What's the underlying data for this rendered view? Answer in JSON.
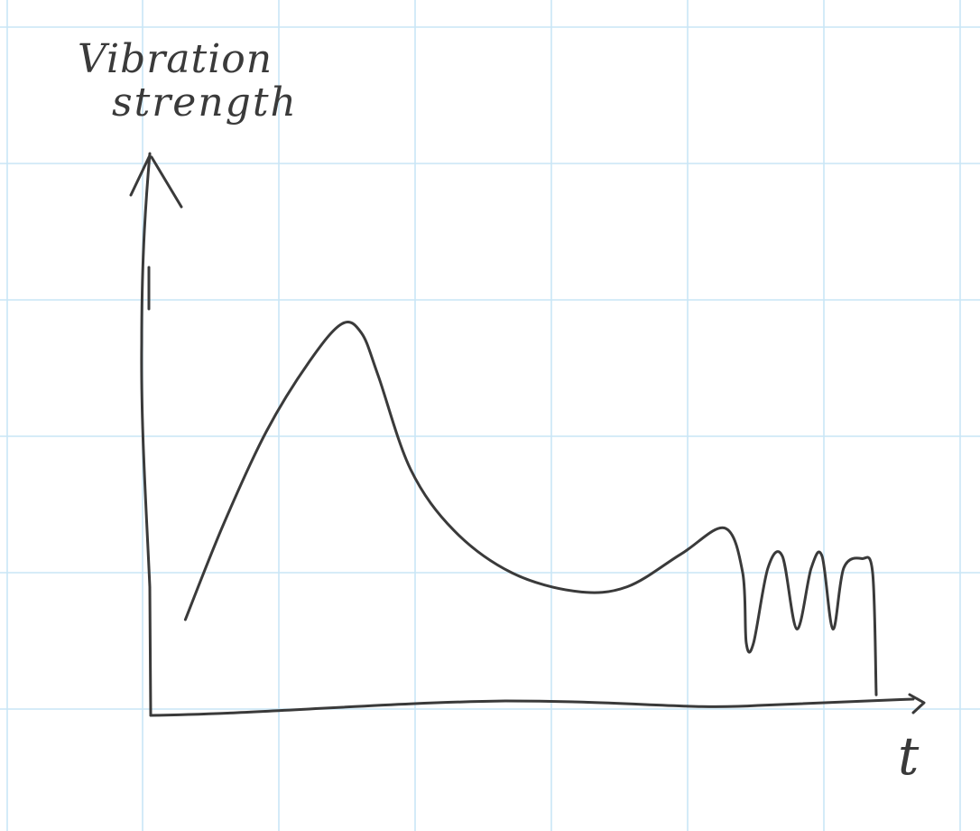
{
  "colors": {
    "paper": "#ffffff",
    "grid": "#c9e6f6",
    "ink": "#3a3a3a"
  },
  "chart_data": {
    "type": "line",
    "title": "",
    "xlabel": "t",
    "ylabel_lines": [
      "Vibration",
      "strength"
    ],
    "grid": true,
    "xlim": [
      0,
      10
    ],
    "ylim": [
      0,
      10
    ],
    "series": [
      {
        "x": [
          0.48,
          1.0,
          1.6,
          2.2,
          2.65,
          2.92,
          3.15,
          3.6,
          4.2,
          5.0,
          5.9,
          6.6,
          7.35,
          7.95,
          8.2,
          8.25,
          8.35,
          8.55,
          8.75,
          8.95,
          9.15,
          9.3,
          9.45,
          9.6,
          9.85,
          10.0,
          10.05
        ],
        "y": [
          2.0,
          4.0,
          6.0,
          7.5,
          8.3,
          8.1,
          7.2,
          5.2,
          3.9,
          3.0,
          2.6,
          2.7,
          3.4,
          3.95,
          3.0,
          1.5,
          1.5,
          3.1,
          3.35,
          1.8,
          3.1,
          3.35,
          1.8,
          3.1,
          3.3,
          3.0,
          0.4
        ]
      }
    ]
  }
}
